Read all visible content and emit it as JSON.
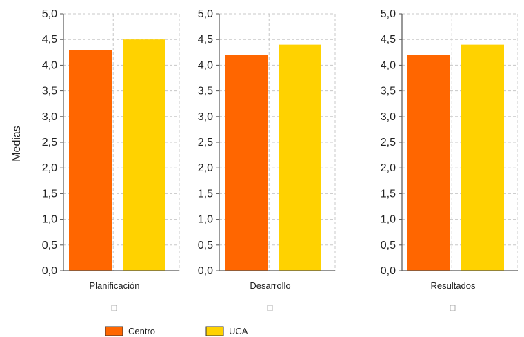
{
  "chart_data": {
    "type": "bar",
    "ylabel": "Medias",
    "ylim": [
      0,
      5
    ],
    "ytick_step": 0.5,
    "ytick_labels": [
      "0,0",
      "0,5",
      "1,0",
      "1,5",
      "2,0",
      "2,5",
      "3,0",
      "3,5",
      "4,0",
      "4,5",
      "5,0"
    ],
    "grid": true,
    "legend_position": "bottom-left",
    "series": [
      {
        "name": "Centro",
        "color": "#ff6600"
      },
      {
        "name": "UCA",
        "color": "#ffd200"
      }
    ],
    "panels": [
      {
        "category": "Planificación",
        "values": [
          4.3,
          4.5
        ]
      },
      {
        "category": "Desarrollo",
        "values": [
          4.2,
          4.4
        ]
      },
      {
        "category": "Resultados",
        "values": [
          4.2,
          4.4
        ]
      }
    ]
  }
}
